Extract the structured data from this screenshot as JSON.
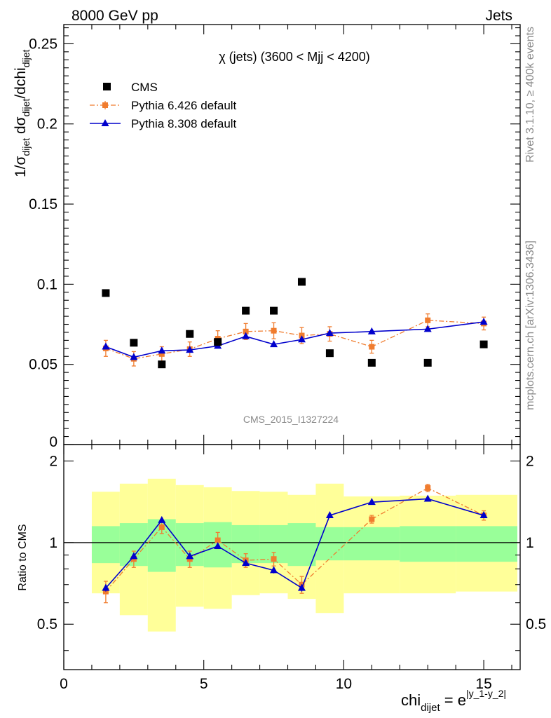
{
  "header": {
    "left": "8000 GeV pp",
    "right": "Jets"
  },
  "side_text": {
    "rivet": "Rivet 3.1.10, ≥ 400k events",
    "mcplots": "mcplots.cern.ch [arXiv:1306.3436]"
  },
  "colors": {
    "cms": "#000000",
    "pythia6": "#f07c2e",
    "pythia8": "#0000cc",
    "band_inner": "#99ff99",
    "band_outer": "#ffff99"
  },
  "chart_data": [
    {
      "type": "scatter",
      "title": "χ (jets) (3600 < Mjj < 4200)",
      "watermark": "CMS_2015_I1327224",
      "ylabel": "1/σ_dijet dσ_dijet/dchi_dijet",
      "xlim": [
        0,
        16.3
      ],
      "ylim": [
        0,
        0.262
      ],
      "yticks": [
        0.05,
        0.1,
        0.15,
        0.2,
        0.25
      ],
      "ytick_labels": [
        "0.05",
        "0.1",
        "0.15",
        "0.2",
        "0.25"
      ],
      "ytick_zero_label": "0",
      "legend_position": "top-left",
      "series": [
        {
          "name": "CMS",
          "marker": "square",
          "x": [
            1.5,
            2.5,
            3.5,
            4.5,
            5.5,
            6.5,
            7.5,
            8.5,
            9.5,
            11,
            13,
            15
          ],
          "y": [
            0.0945,
            0.0635,
            0.05,
            0.069,
            0.064,
            0.0835,
            0.0835,
            0.1015,
            0.057,
            0.051,
            0.051,
            0.0625
          ]
        },
        {
          "name": "Pythia 6.426 default",
          "marker": "square",
          "line": "dashdot",
          "x": [
            1.5,
            2.5,
            3.5,
            4.5,
            5.5,
            6.5,
            7.5,
            8.5,
            9.5,
            11,
            13,
            15
          ],
          "y": [
            0.06,
            0.0535,
            0.0565,
            0.0595,
            0.066,
            0.0705,
            0.071,
            0.068,
            0.069,
            0.061,
            0.0775,
            0.0755
          ],
          "err": [
            0.005,
            0.0045,
            0.0045,
            0.0045,
            0.005,
            0.005,
            0.005,
            0.005,
            0.0045,
            0.004,
            0.004,
            0.004
          ]
        },
        {
          "name": "Pythia 8.308 default",
          "marker": "triangle",
          "line": "solid",
          "x": [
            1.5,
            2.5,
            3.5,
            4.5,
            5.5,
            6.5,
            7.5,
            8.5,
            9.5,
            11,
            13,
            15
          ],
          "y": [
            0.061,
            0.0545,
            0.0585,
            0.059,
            0.0615,
            0.0675,
            0.0625,
            0.0655,
            0.0695,
            0.0705,
            0.072,
            0.0765
          ],
          "err": [
            0.0015,
            0.0015,
            0.0015,
            0.0015,
            0.0015,
            0.0015,
            0.0015,
            0.0015,
            0.0015,
            0.0015,
            0.0015,
            0.0015
          ]
        }
      ]
    },
    {
      "type": "scatter",
      "ylabel": "Ratio to CMS",
      "xlabel": "chi_dijet = e^|y_1-y_2|",
      "xlim": [
        0,
        16.3
      ],
      "ylim": [
        0.34,
        2.3
      ],
      "xticks": [
        0,
        5,
        10,
        15
      ],
      "xtick_labels": [
        "0",
        "5",
        "10",
        "15"
      ],
      "yticks": [
        0.5,
        1,
        2
      ],
      "ytick_labels": [
        "0.5",
        "1",
        "2"
      ],
      "reference_line": 1,
      "bands": [
        {
          "x": [
            1,
            2,
            3,
            4,
            5,
            6,
            7,
            8,
            9,
            10,
            12,
            14,
            16.2
          ],
          "inner_lo": [
            0.84,
            0.82,
            0.78,
            0.82,
            0.81,
            0.84,
            0.84,
            0.82,
            0.86,
            0.86,
            0.85,
            0.85
          ],
          "inner_hi": [
            1.15,
            1.18,
            1.22,
            1.18,
            1.19,
            1.16,
            1.16,
            1.18,
            1.14,
            1.14,
            1.15,
            1.15
          ],
          "outer_lo": [
            0.65,
            0.54,
            0.47,
            0.58,
            0.57,
            0.64,
            0.65,
            0.62,
            0.55,
            0.65,
            0.65,
            0.66
          ],
          "outer_hi": [
            1.54,
            1.65,
            1.72,
            1.63,
            1.6,
            1.55,
            1.54,
            1.5,
            1.65,
            1.48,
            1.49,
            1.5
          ]
        }
      ],
      "series": [
        {
          "name": "Pythia 6.426 default",
          "x": [
            1.5,
            2.5,
            3.5,
            4.5,
            5.5,
            6.5,
            7.5,
            8.5,
            11,
            13,
            15
          ],
          "y": [
            0.66,
            0.87,
            1.14,
            0.87,
            1.02,
            0.86,
            0.87,
            0.7,
            1.22,
            1.59,
            1.26
          ],
          "err": [
            0.06,
            0.06,
            0.06,
            0.06,
            0.07,
            0.05,
            0.05,
            0.05,
            0.04,
            0.05,
            0.05
          ]
        },
        {
          "name": "Pythia 8.308 default",
          "x": [
            1.5,
            2.5,
            3.5,
            4.5,
            5.5,
            6.5,
            7.5,
            8.5,
            9.5,
            11,
            13,
            15
          ],
          "y": [
            0.68,
            0.89,
            1.21,
            0.89,
            0.97,
            0.84,
            0.79,
            0.68,
            1.26,
            1.41,
            1.45,
            1.26
          ],
          "err": [
            0.02,
            0.02,
            0.02,
            0.02,
            0.02,
            0.02,
            0.02,
            0.02,
            0.02,
            0.02,
            0.02,
            0.02
          ]
        }
      ]
    }
  ]
}
